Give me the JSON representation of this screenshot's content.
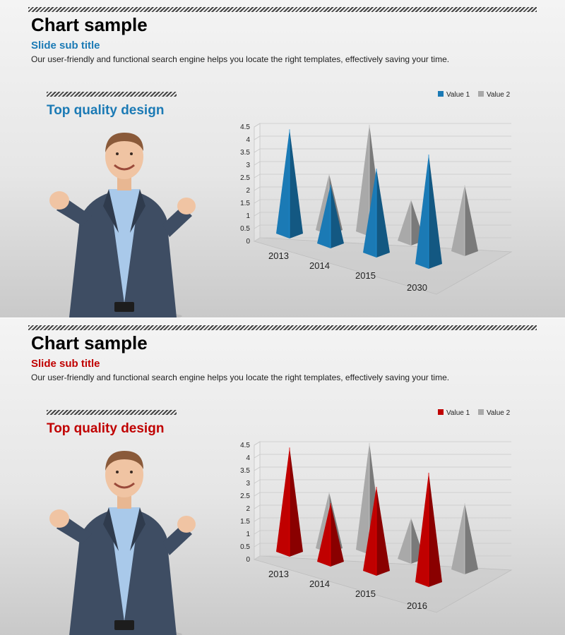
{
  "slides": [
    {
      "title": "Chart sample",
      "subtitle": "Slide sub title",
      "description": "Our user-friendly and functional search engine helps you locate the right templates, effectively saving your time.",
      "heading": "Top quality design",
      "accent": "#1b7ab5",
      "chart_data": {
        "type": "bar",
        "subtype": "3d-pyramid",
        "categories": [
          "2013",
          "2014",
          "2015",
          "2030"
        ],
        "series": [
          {
            "name": "Value 1",
            "values": [
              4.3,
              2.5,
              3.5,
              4.5
            ],
            "color": "#1b7ab5"
          },
          {
            "name": "Value 2",
            "values": [
              2.4,
              4.4,
              1.8,
              2.8
            ],
            "color": "#a9a9a9"
          }
        ],
        "ylim": [
          0,
          4.5
        ],
        "yticks": [
          "0",
          "0.5",
          "1",
          "1.5",
          "2",
          "2.5",
          "3",
          "3.5",
          "4",
          "4.5"
        ],
        "grid": true,
        "legend": "top-right"
      }
    },
    {
      "title": "Chart sample",
      "subtitle": "Slide sub title",
      "description": "Our user-friendly and functional search engine helps you locate the right templates, effectively saving your time.",
      "heading": "Top quality design",
      "accent": "#c00000",
      "chart_data": {
        "type": "bar",
        "subtype": "3d-pyramid",
        "categories": [
          "2013",
          "2014",
          "2015",
          "2016"
        ],
        "series": [
          {
            "name": "Value 1",
            "values": [
              4.3,
              2.5,
              3.5,
              4.5
            ],
            "color": "#c00000"
          },
          {
            "name": "Value 2",
            "values": [
              2.4,
              4.4,
              1.8,
              2.8
            ],
            "color": "#a9a9a9"
          }
        ],
        "ylim": [
          0,
          4.5
        ],
        "yticks": [
          "0",
          "0.5",
          "1",
          "1.5",
          "2",
          "2.5",
          "3",
          "3.5",
          "4",
          "4.5"
        ],
        "grid": true,
        "legend": "top-right"
      }
    }
  ]
}
